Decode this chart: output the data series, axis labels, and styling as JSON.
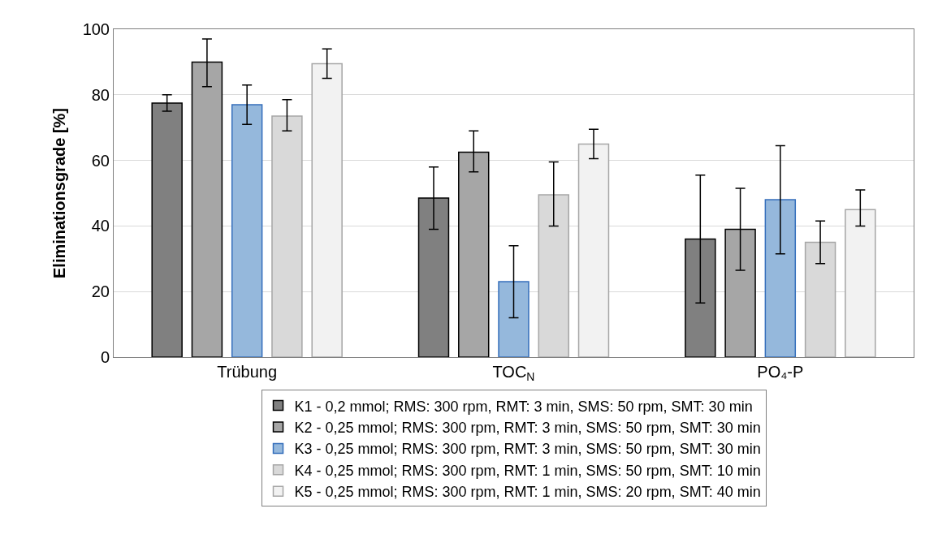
{
  "chart_data": {
    "type": "bar",
    "ylabel": "Eliminationsgrade [%]",
    "categories": [
      "Trübung",
      "TOC$_{N}$",
      "PO₄-P"
    ],
    "series": [
      {
        "name": "K1 - 0,2 mmol; RMS: 300 rpm, RMT: 3 min, SMS: 50 rpm, SMT: 30 min",
        "color": "#808080",
        "values": [
          77.5,
          48.5,
          36
        ],
        "errors": [
          [
            75,
            80
          ],
          [
            39,
            58
          ],
          [
            16.5,
            55.5
          ]
        ]
      },
      {
        "name": "K2 - 0,25 mmol; RMS: 300 rpm, RMT: 3 min, SMS: 50 rpm, SMT: 30 min",
        "color": "#a6a6a6",
        "values": [
          90,
          62.5,
          39
        ],
        "errors": [
          [
            82.5,
            97
          ],
          [
            56.5,
            69
          ],
          [
            26.5,
            51.5
          ]
        ]
      },
      {
        "name": "K3 - 0,25 mmol; RMS: 300 rpm, RMT: 3 min, SMS: 50 rpm, SMT: 30 min",
        "color": "#95b8dc",
        "values": [
          77,
          23,
          48
        ],
        "errors": [
          [
            71,
            83
          ],
          [
            12,
            34
          ],
          [
            31.5,
            64.5
          ]
        ]
      },
      {
        "name": "K4 - 0,25 mmol; RMS: 300 rpm, RMT: 1 min, SMS: 50 rpm, SMT: 10 min",
        "color": "#d9d9d9",
        "values": [
          73.5,
          49.5,
          35
        ],
        "errors": [
          [
            69,
            78.5
          ],
          [
            40,
            59.5
          ],
          [
            28.5,
            41.5
          ]
        ]
      },
      {
        "name": "K5 - 0,25 mmol; RMS: 300 rpm, RMT: 1 min, SMS: 20 rpm, SMT: 40 min",
        "color": "#f2f2f2",
        "values": [
          89.5,
          65,
          45
        ],
        "errors": [
          [
            85,
            94
          ],
          [
            60.5,
            69.5
          ],
          [
            40,
            51
          ]
        ]
      }
    ],
    "ylim": [
      0,
      100
    ],
    "yticks": [
      0,
      20,
      40,
      60,
      80,
      100
    ],
    "grid": "y",
    "legend": "bottom"
  }
}
